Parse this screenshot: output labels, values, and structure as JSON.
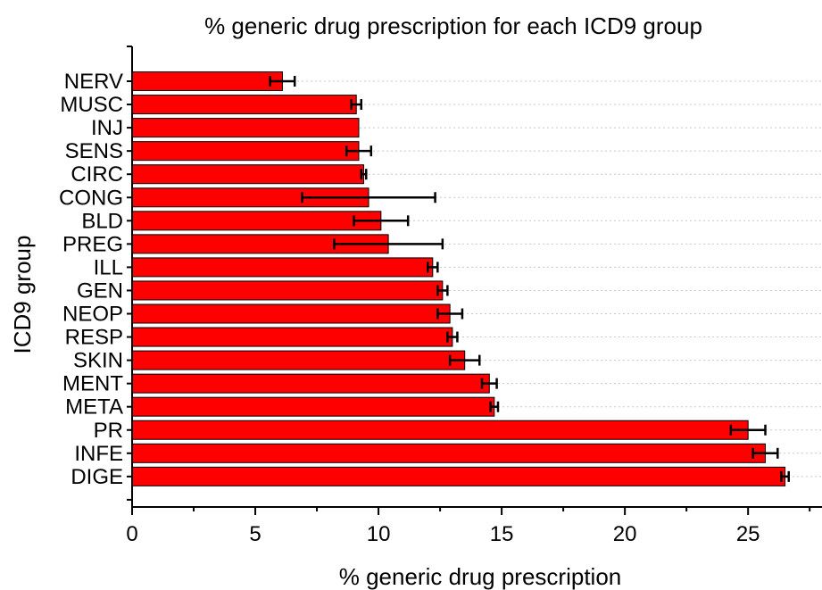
{
  "chart_data": {
    "type": "bar",
    "orientation": "horizontal",
    "title": "% generic drug prescription for each ICD9 group",
    "xlabel": "% generic drug prescription",
    "ylabel": "ICD9 group",
    "xlim": [
      0,
      28
    ],
    "xticks": [
      0,
      5,
      10,
      15,
      20,
      25
    ],
    "grid": true,
    "bar_color": "#ff0000",
    "categories": [
      "NERV",
      "MUSC",
      "INJ",
      "SENS",
      "CIRC",
      "CONG",
      "BLD",
      "PREG",
      "ILL",
      "GEN",
      "NEOP",
      "RESP",
      "SKIN",
      "MENT",
      "META",
      "PR",
      "INFE",
      "DIGE"
    ],
    "values": [
      6.1,
      9.1,
      9.2,
      9.2,
      9.4,
      9.6,
      10.1,
      10.4,
      12.2,
      12.6,
      12.9,
      13.0,
      13.5,
      14.5,
      14.7,
      25.0,
      25.7,
      26.5
    ],
    "error": [
      0.5,
      0.2,
      0.0,
      0.5,
      0.1,
      2.7,
      1.1,
      2.2,
      0.2,
      0.2,
      0.5,
      0.2,
      0.6,
      0.3,
      0.15,
      0.7,
      0.5,
      0.15
    ]
  }
}
